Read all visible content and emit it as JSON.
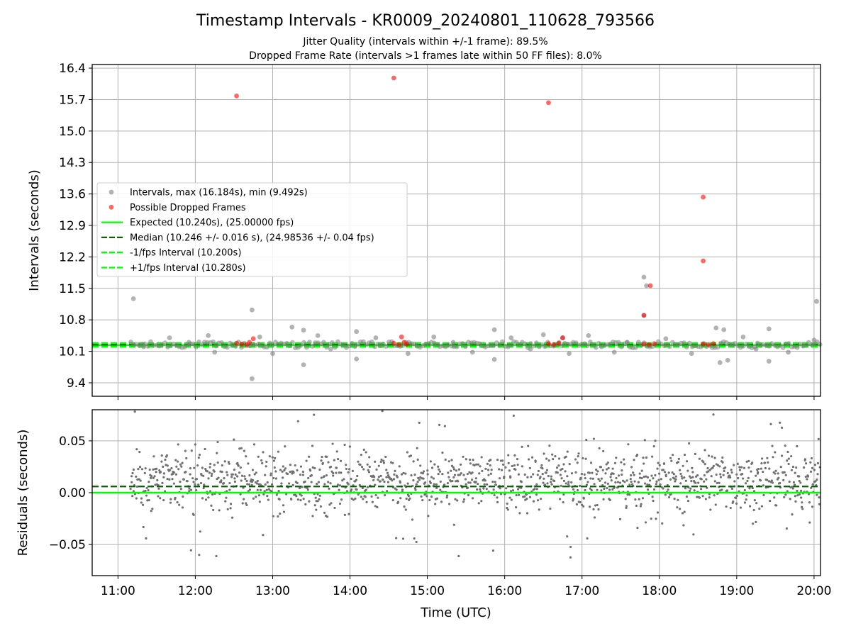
{
  "figure": {
    "title": "Timestamp Intervals - KR0009_20240801_110628_793566",
    "subtitle_1": "Jitter Quality (intervals within +/-1 frame): 89.5%",
    "subtitle_2": "Dropped Frame Rate (intervals >1 frames late within 50 FF files): 8.0%"
  },
  "chart_data": [
    {
      "type": "scatter",
      "panel": "top",
      "ylabel": "Intervals (seconds)",
      "xlabel": "",
      "xlim": [
        "10:40",
        "20:05"
      ],
      "ylim": [
        9.1,
        16.48
      ],
      "x_ticks": [
        "11:00",
        "12:00",
        "13:00",
        "14:00",
        "15:00",
        "16:00",
        "17:00",
        "18:00",
        "19:00",
        "20:00"
      ],
      "y_ticks": [
        "9.4",
        "10.1",
        "10.8",
        "11.5",
        "12.2",
        "12.9",
        "13.6",
        "14.3",
        "15.0",
        "15.7",
        "16.4"
      ],
      "y_tick_values": [
        9.4,
        10.1,
        10.8,
        11.5,
        12.2,
        12.9,
        13.6,
        14.3,
        15.0,
        15.7,
        16.4
      ],
      "grid": true,
      "legend_position": "center-left",
      "legend": [
        {
          "label": "Intervals, max (16.184s), min (9.492s)",
          "kind": "dot",
          "color": "#808080"
        },
        {
          "label": "Possible Dropped Frames",
          "kind": "dot",
          "color": "#ff0000"
        },
        {
          "label": "Expected (10.240s), (25.00000 fps)",
          "kind": "line",
          "color": "#00ff00"
        },
        {
          "label": "Median (10.246 +/- 0.016 s), (24.98536 +/- 0.04 fps)",
          "kind": "dashed",
          "color": "#006400"
        },
        {
          "label": "-1/fps Interval (10.200s)",
          "kind": "dashed",
          "color": "#00ff00"
        },
        {
          "label": "+1/fps Interval (10.280s)",
          "kind": "dashed",
          "color": "#00ff00"
        }
      ],
      "lines": {
        "expected": 10.24,
        "median": 10.246,
        "minus_one_fps": 10.2,
        "plus_one_fps": 10.28
      },
      "series": [
        {
          "name": "Intervals, max (16.184s), min (9.492s)",
          "color": "#808080",
          "points": [
            [
              "11:12",
              11.27
            ],
            [
              "12:44",
              11.02
            ],
            [
              "12:44",
              9.49
            ],
            [
              "13:15",
              10.64
            ],
            [
              "13:24",
              10.57
            ],
            [
              "13:24",
              9.8
            ],
            [
              "14:05",
              10.54
            ],
            [
              "14:05",
              9.93
            ],
            [
              "15:52",
              10.58
            ],
            [
              "15:52",
              9.92
            ],
            [
              "16:30",
              10.47
            ],
            [
              "16:45",
              10.4
            ],
            [
              "17:48",
              11.75
            ],
            [
              "17:50",
              11.56
            ],
            [
              "17:48",
              10.9
            ],
            [
              "18:44",
              10.62
            ],
            [
              "18:50",
              10.58
            ],
            [
              "18:47",
              9.85
            ],
            [
              "18:53",
              9.9
            ],
            [
              "19:25",
              10.6
            ],
            [
              "19:25",
              9.88
            ],
            [
              "20:02",
              11.21
            ],
            [
              "11:40",
              10.4
            ],
            [
              "12:10",
              10.45
            ],
            [
              "12:15",
              10.08
            ],
            [
              "12:50",
              10.42
            ],
            [
              "13:00",
              10.05
            ],
            [
              "13:35",
              10.45
            ],
            [
              "14:20",
              10.4
            ],
            [
              "14:45",
              10.05
            ],
            [
              "15:05",
              10.42
            ],
            [
              "15:35",
              10.08
            ],
            [
              "16:05",
              10.4
            ],
            [
              "16:50",
              10.05
            ],
            [
              "17:05",
              10.45
            ],
            [
              "17:25",
              10.08
            ],
            [
              "18:05",
              10.38
            ],
            [
              "18:25",
              10.05
            ],
            [
              "19:05",
              10.42
            ],
            [
              "19:40",
              10.08
            ],
            [
              "20:00",
              10.35
            ],
            [
              "11:20",
              10.2
            ],
            [
              "11:55",
              10.3
            ],
            [
              "13:45",
              10.15
            ],
            [
              "15:20",
              10.3
            ],
            [
              "16:20",
              10.15
            ],
            [
              "17:35",
              10.3
            ],
            [
              "19:15",
              10.15
            ]
          ]
        },
        {
          "name": "Possible Dropped Frames",
          "color": "#ff0000",
          "points": [
            [
              "12:32",
              15.78
            ],
            [
              "14:34",
              16.18
            ],
            [
              "16:34",
              15.63
            ],
            [
              "18:34",
              13.53
            ],
            [
              "18:34",
              12.11
            ],
            [
              "17:48",
              10.9
            ],
            [
              "17:53",
              11.56
            ],
            [
              "12:45",
              10.38
            ],
            [
              "14:40",
              10.42
            ],
            [
              "16:45",
              10.4
            ],
            [
              "12:32",
              10.28
            ],
            [
              "12:36",
              10.26
            ],
            [
              "12:40",
              10.25
            ],
            [
              "12:42",
              10.3
            ],
            [
              "14:34",
              10.28
            ],
            [
              "14:38",
              10.25
            ],
            [
              "14:42",
              10.3
            ],
            [
              "14:44",
              10.26
            ],
            [
              "16:34",
              10.27
            ],
            [
              "16:38",
              10.25
            ],
            [
              "16:42",
              10.28
            ],
            [
              "17:48",
              10.26
            ],
            [
              "17:52",
              10.25
            ],
            [
              "17:56",
              10.27
            ],
            [
              "18:34",
              10.26
            ],
            [
              "18:38",
              10.25
            ],
            [
              "18:42",
              10.27
            ]
          ]
        }
      ]
    },
    {
      "type": "scatter",
      "panel": "bottom",
      "ylabel": "Residuals (seconds)",
      "xlabel": "Time (UTC)",
      "xlim": [
        "10:40",
        "20:05"
      ],
      "ylim": [
        -0.08,
        0.08
      ],
      "x_ticks": [
        "11:00",
        "12:00",
        "13:00",
        "14:00",
        "15:00",
        "16:00",
        "17:00",
        "18:00",
        "19:00",
        "20:00"
      ],
      "y_ticks": [
        "0.05",
        "0.00",
        "−0.05"
      ],
      "y_tick_values": [
        0.05,
        0.0,
        -0.05
      ],
      "grid": true,
      "lines": {
        "zero": 0.0,
        "median_residual": 0.006
      },
      "series": [
        {
          "name": "",
          "color": "#808080",
          "generated_from": {
            "start": "11:10",
            "end": "20:05",
            "count": 1400,
            "center": 0.012,
            "spread": 0.018
          }
        }
      ]
    }
  ]
}
